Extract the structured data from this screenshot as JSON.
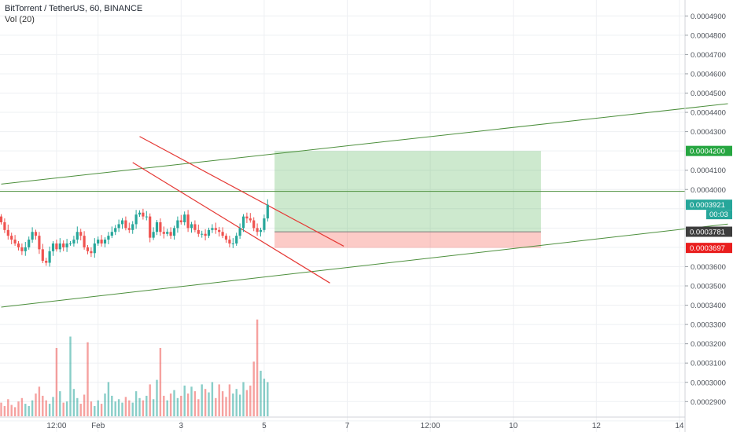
{
  "header": {
    "symbol_title": "BitTorrent / TetherUS, 60, BINANCE",
    "volume_label": "Vol (20)"
  },
  "chart_data": {
    "type": "candlestick",
    "price_axis": {
      "min": 0.00028,
      "max": 0.0005,
      "ticks": [
        "0.0004900",
        "0.0004800",
        "0.0004700",
        "0.0004600",
        "0.0004500",
        "0.0004400",
        "0.0004300",
        "0.0004100",
        "0.0004000",
        "0.0003600",
        "0.0003500",
        "0.0003400",
        "0.0003300",
        "0.0003200",
        "0.0003100",
        "0.0003000",
        "0.0002900"
      ]
    },
    "time_axis": {
      "labels": [
        {
          "t": 16,
          "text": "12:00"
        },
        {
          "t": 28,
          "text": "Feb"
        },
        {
          "t": 52,
          "text": "3"
        },
        {
          "t": 76,
          "text": "5"
        },
        {
          "t": 100,
          "text": "7"
        },
        {
          "t": 124,
          "text": "12:00"
        },
        {
          "t": 148,
          "text": "10"
        },
        {
          "t": 172,
          "text": "12"
        },
        {
          "t": 196,
          "text": "14"
        }
      ]
    },
    "price_badges": [
      {
        "label": "0.0004200",
        "value": 0.00042,
        "color": "#26a641"
      },
      {
        "label": "0.0003921",
        "value": 0.0003921,
        "color": "#26a69a",
        "sub": "00:03"
      },
      {
        "label": "0.0003781",
        "value": 0.0003781,
        "color": "#3d3d3d"
      },
      {
        "label": "0.0003697",
        "value": 0.0003697,
        "color": "#e91e1e"
      }
    ],
    "horizontal_line": 0.00039905,
    "green_channel": [
      {
        "from": [
          0,
          0.0004028
        ],
        "to": [
          210,
          0.0004445
        ]
      },
      {
        "from": [
          0,
          0.000339
        ],
        "to": [
          210,
          0.0003821
        ]
      }
    ],
    "red_channel": [
      {
        "from": [
          40,
          0.0004275
        ],
        "to": [
          99,
          0.0003706
        ]
      },
      {
        "from": [
          38,
          0.000414
        ],
        "to": [
          95,
          0.0003515
        ]
      }
    ],
    "position": {
      "t_start": 79,
      "t_end": 156,
      "target": 0.00042,
      "entry": 0.00037805,
      "stop": 0.0003697
    },
    "candles": {
      "start_t": 0,
      "close": [
        0.000383,
        0.000379,
        0.000376,
        0.000374,
        0.000372,
        0.00037,
        0.000368,
        0.00037,
        0.000374,
        0.000378,
        0.000376,
        0.000369,
        0.000363,
        0.000362,
        0.000368,
        0.000372,
        0.000369,
        0.000372,
        0.00037,
        0.000372,
        0.000372,
        0.000374,
        0.000378,
        0.000376,
        0.00037,
        0.000368,
        0.000367,
        0.000372,
        0.000374,
        0.000372,
        0.000374,
        0.000376,
        0.000378,
        0.00038,
        0.000382,
        0.000384,
        0.00038,
        0.000379,
        0.000382,
        0.000387,
        0.000388,
        0.000386,
        0.000386,
        0.000375,
        0.000378,
        0.000383,
        0.000378,
        0.000377,
        0.000378,
        0.000376,
        0.00038,
        0.000384,
        0.000383,
        0.000387,
        0.00038,
        0.000382,
        0.000379,
        0.000377,
        0.000377,
        0.000376,
        0.000379,
        0.00038,
        0.000379,
        0.000378,
        0.000376,
        0.000374,
        0.000372,
        0.000372,
        0.000376,
        0.00038,
        0.000386,
        0.000385,
        0.000384,
        0.00038,
        0.000378,
        0.000379,
        0.000385,
        0.0003921
      ],
      "volume": [
        1.2e-05,
        9e-06,
        1.5e-05,
        1e-05,
        8e-06,
        1.3e-05,
        1.6e-05,
        1.1e-05,
        9e-06,
        1.4e-05,
        2e-05,
        2.6e-05,
        1.8e-05,
        1.4e-05,
        1.1e-05,
        1.7e-05,
        6e-05,
        2.2e-05,
        1.2e-05,
        1.3e-05,
        7e-05,
        2.4e-05,
        1.6e-05,
        1.1e-05,
        1.9e-05,
        6.5e-05,
        1.3e-05,
        9e-06,
        1.4e-05,
        1.1e-05,
        2e-05,
        3e-05,
        1.8e-05,
        1.3e-05,
        1.5e-05,
        1.2e-05,
        1.7e-05,
        1.4e-05,
        1.2e-05,
        2.2e-05,
        1.6e-05,
        1.4e-05,
        1.8e-05,
        2.8e-05,
        1.5e-05,
        3.2e-05,
        6e-05,
        1.8e-05,
        1.4e-05,
        2e-05,
        2.3e-05,
        1.6e-05,
        1.8e-05,
        2.7e-05,
        2e-05,
        2.6e-05,
        2.2e-05,
        1.5e-05,
        2.8e-05,
        2.4e-05,
        2.1e-05,
        3e-05,
        1.6e-05,
        2.8e-05,
        2.2e-05,
        1.7e-05,
        2.8e-05,
        2e-05,
        2.4e-05,
        1.9e-05,
        3e-05,
        2.3e-05,
        2.7e-05,
        4.8e-05,
        8.5e-05,
        4e-05,
        3.3e-05,
        3e-05
      ]
    }
  }
}
